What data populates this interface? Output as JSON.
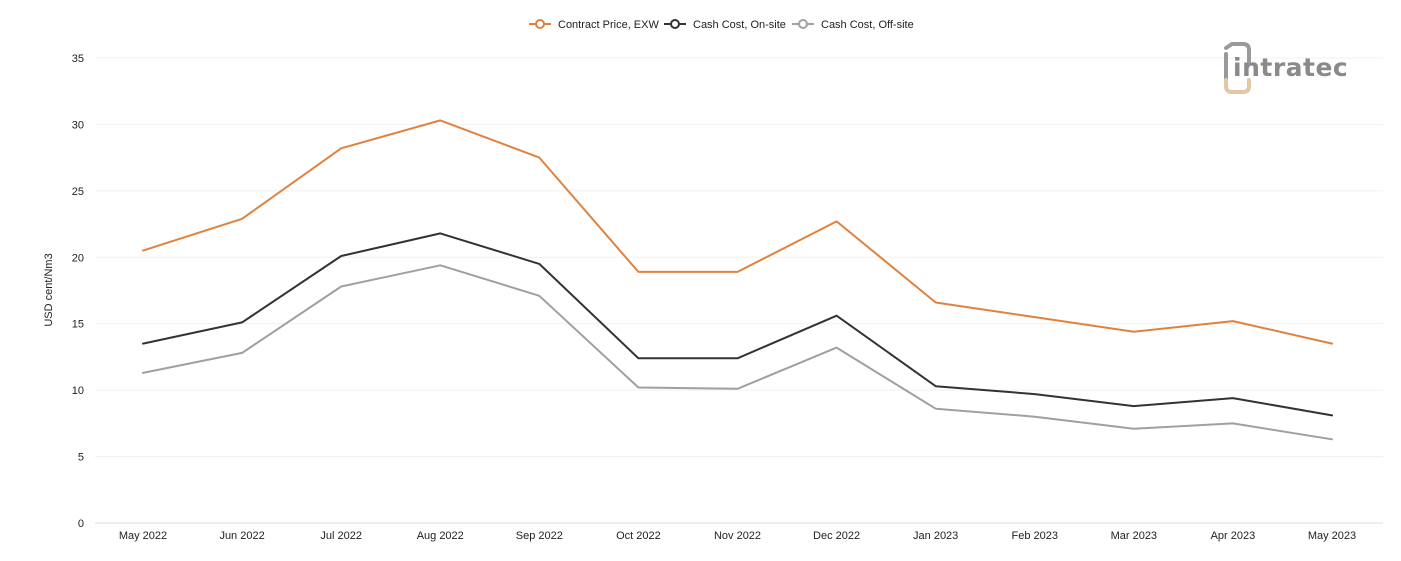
{
  "chart_data": {
    "type": "line",
    "title": "",
    "xlabel": "",
    "ylabel": "USD cent/Nm3",
    "ylim": [
      0,
      35
    ],
    "yticks": [
      0,
      5,
      10,
      15,
      20,
      25,
      30,
      35
    ],
    "grid": true,
    "legend_position": "top-center",
    "categories": [
      "May 2022",
      "Jun 2022",
      "Jul 2022",
      "Aug 2022",
      "Sep 2022",
      "Oct 2022",
      "Nov 2022",
      "Dec 2022",
      "Jan 2023",
      "Feb 2023",
      "Mar 2023",
      "Apr 2023",
      "May 2023"
    ],
    "series": [
      {
        "name": "Contract Price, EXW",
        "color": "#e0823e",
        "values": [
          20.5,
          22.9,
          28.2,
          30.3,
          27.5,
          18.9,
          18.9,
          22.7,
          16.6,
          15.5,
          14.4,
          15.2,
          13.5
        ]
      },
      {
        "name": "Cash Cost, On-site",
        "color": "#333333",
        "values": [
          13.5,
          15.1,
          20.1,
          21.8,
          19.5,
          12.4,
          12.4,
          15.6,
          10.3,
          9.7,
          8.8,
          9.4,
          8.1
        ]
      },
      {
        "name": "Cash Cost, Off-site",
        "color": "#a0a0a0",
        "values": [
          11.3,
          12.8,
          17.8,
          19.4,
          17.1,
          10.2,
          10.1,
          13.2,
          8.6,
          8.0,
          7.1,
          7.5,
          6.3
        ]
      }
    ]
  },
  "logo": {
    "text": "intratec",
    "icon": "intratec-logo-icon",
    "text_color": "#8a8a8a",
    "accent_color": "#e3c7a6"
  }
}
